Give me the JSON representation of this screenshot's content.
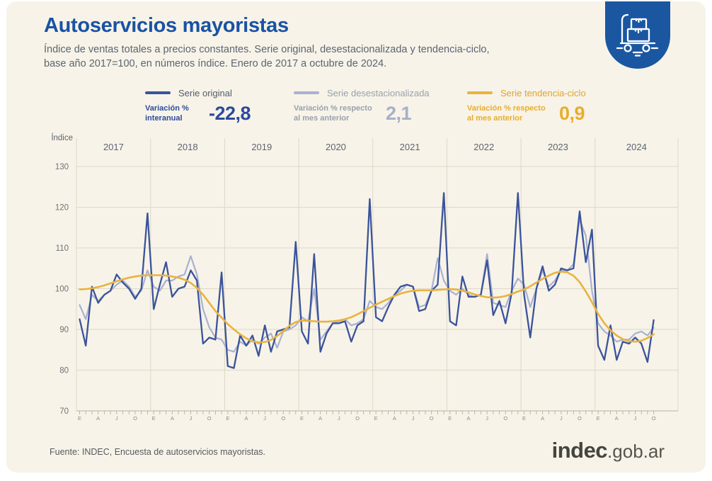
{
  "header": {
    "title": "Autoservicios mayoristas",
    "subtitle_line1": "Índice de ventas totales a precios constantes. Serie original, desestacionalizada y tendencia-ciclo,",
    "subtitle_line2": "base año 2017=100, en números índice. Enero de 2017 a octubre de 2024.",
    "icon": "hand-truck-icon",
    "icon_badge_color": "#1b57a1",
    "title_color": "#1a52a4"
  },
  "legend": [
    {
      "series": "Serie original",
      "stat_label_line1": "Variación %",
      "stat_label_line2": "interanual",
      "value": "-22,8",
      "color": "#3a539b"
    },
    {
      "series": "Serie desestacionalizada",
      "stat_label_line1": "Variación % respecto",
      "stat_label_line2": "al mes anterior",
      "value": "2,1",
      "color": "#a9b1d2"
    },
    {
      "series": "Serie tendencia-ciclo",
      "stat_label_line1": "Variación % respecto",
      "stat_label_line2": "al mes anterior",
      "value": "0,9",
      "color": "#e8b33f"
    }
  ],
  "chart_data": {
    "type": "line",
    "ylabel": "Índice",
    "ylim": [
      70,
      130
    ],
    "yticks": [
      130,
      120,
      110,
      100,
      90,
      80,
      70
    ],
    "grid": true,
    "legend_position": "top",
    "x_start": "2017-01",
    "x_end": "2024-10",
    "years": [
      2017,
      2018,
      2019,
      2020,
      2021,
      2022,
      2023,
      2024
    ],
    "month_tick_labels": [
      "E",
      "A",
      "J",
      "O"
    ],
    "series": [
      {
        "name": "Serie original",
        "color": "#3a539b",
        "values": [
          92.5,
          86,
          100.5,
          96.5,
          98.5,
          99.5,
          103.5,
          101.5,
          100,
          97.5,
          100,
          118.5,
          95,
          101,
          106.5,
          98,
          100,
          100.5,
          104.5,
          102,
          86.5,
          88,
          87.5,
          104,
          81,
          80.5,
          88.5,
          86,
          88.5,
          83.5,
          91,
          84.5,
          89.5,
          90,
          90.5,
          111.5,
          89.5,
          86.5,
          108.5,
          84.5,
          89,
          91.5,
          91.5,
          92,
          87,
          91,
          92,
          122,
          93,
          92,
          95.5,
          98.5,
          100.5,
          101,
          100.5,
          94.5,
          95,
          99.5,
          101,
          123.5,
          92,
          91,
          103,
          98,
          98,
          98.5,
          107,
          93.5,
          97,
          91.5,
          99,
          123.5,
          98.5,
          88,
          100,
          105.5,
          99.5,
          101,
          105,
          104.5,
          105,
          119,
          106.5,
          114.5,
          86,
          82.5,
          91,
          82.5,
          87,
          86.5,
          88,
          86.5,
          82,
          92.3
        ]
      },
      {
        "name": "Serie desestacionalizada",
        "color": "#a9b1d2",
        "values": [
          96,
          92.5,
          98.5,
          97,
          98.5,
          99.5,
          101,
          102,
          100.5,
          98,
          99.5,
          104.5,
          100.5,
          99.5,
          102,
          102,
          103,
          103.5,
          108,
          103.5,
          95,
          90.5,
          88,
          87.5,
          85,
          84.5,
          87,
          86,
          87.5,
          86.5,
          88,
          89,
          85.5,
          89.5,
          90,
          91,
          93,
          92,
          100,
          87.5,
          89.5,
          91.5,
          92,
          92.5,
          91,
          91.5,
          92.5,
          97,
          95.5,
          95,
          96.5,
          98.5,
          99.5,
          101,
          100.5,
          95.5,
          96,
          99.5,
          107.5,
          102,
          99.5,
          98.5,
          100,
          98.5,
          98,
          98.5,
          108.5,
          96.5,
          96,
          95.5,
          99.5,
          102.5,
          101,
          95.5,
          100,
          104.5,
          100.5,
          102,
          104.5,
          104.5,
          106,
          117,
          113,
          99.5,
          91.5,
          89.5,
          88.5,
          87,
          87.5,
          87.5,
          89,
          89.5,
          88.5,
          90.4
        ]
      },
      {
        "name": "Serie tendencia-ciclo",
        "color": "#e8b33f",
        "values": [
          99.8,
          99.9,
          100.1,
          100.4,
          100.8,
          101.3,
          101.8,
          102.3,
          102.7,
          103,
          103.2,
          103.3,
          103.3,
          103.3,
          103.2,
          103,
          102.7,
          102.2,
          101.4,
          100.2,
          98.5,
          96.5,
          94.5,
          92.9,
          91.3,
          90,
          88.8,
          87.8,
          87.1,
          86.8,
          86.9,
          87.4,
          88.4,
          89.6,
          90.9,
          91.8,
          92.2,
          92.1,
          92,
          91.9,
          91.9,
          92,
          92.2,
          92.5,
          93,
          93.7,
          94.5,
          95.3,
          96.1,
          96.8,
          97.5,
          98.2,
          98.8,
          99.2,
          99.5,
          99.6,
          99.6,
          99.6,
          99.7,
          99.8,
          99.9,
          99.8,
          99.5,
          99.1,
          98.6,
          98.2,
          97.9,
          97.8,
          97.9,
          98.2,
          98.7,
          99.3,
          99.8,
          100.6,
          101.5,
          102.4,
          103.2,
          103.9,
          104.2,
          104,
          103.2,
          101.6,
          99.3,
          96.7,
          93.8,
          91.5,
          89.8,
          88.5,
          87.6,
          87.1,
          87,
          87.2,
          87.9,
          88.8
        ]
      }
    ]
  },
  "footer": {
    "source": "Fuente: INDEC, Encuesta de autoservicios mayoristas.",
    "logo_bold": "indec",
    "logo_suffix": ".gob.ar"
  }
}
